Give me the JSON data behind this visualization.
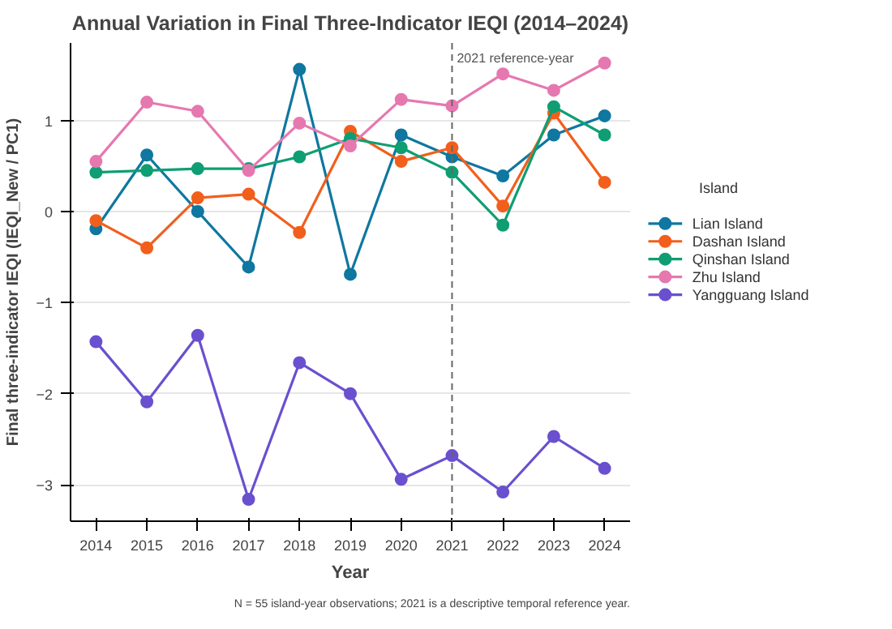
{
  "chart_data": {
    "type": "line",
    "title": "Annual Variation in Final Three-Indicator IEQI (2014–2024)",
    "xlabel": "Year",
    "ylabel": "Final three-indicator IEQI (IEQI_New / PC1)",
    "legend_title": "Island",
    "x": [
      2014,
      2015,
      2016,
      2017,
      2018,
      2019,
      2020,
      2021,
      2022,
      2023,
      2024
    ],
    "series": [
      {
        "name": "Lian Island",
        "color": "#0f77a0",
        "values": [
          -0.19,
          0.62,
          0.0,
          -0.61,
          1.56,
          -0.69,
          0.84,
          0.6,
          0.39,
          0.84,
          1.05
        ]
      },
      {
        "name": "Dashan Island",
        "color": "#f25f1c",
        "values": [
          -0.1,
          -0.4,
          0.15,
          0.19,
          -0.23,
          0.88,
          0.55,
          0.7,
          0.06,
          1.08,
          0.32
        ]
      },
      {
        "name": "Qinshan Island",
        "color": "#0f9e73",
        "values": [
          0.43,
          0.45,
          0.47,
          0.47,
          0.6,
          0.8,
          0.7,
          0.43,
          -0.15,
          1.15,
          0.84
        ]
      },
      {
        "name": "Zhu Island",
        "color": "#e678b0",
        "values": [
          0.55,
          1.2,
          1.1,
          0.45,
          0.97,
          0.72,
          1.23,
          1.16,
          1.51,
          1.33,
          1.63
        ]
      },
      {
        "name": "Yangguang Island",
        "color": "#6a50cf",
        "values": [
          -1.43,
          -2.09,
          -1.36,
          -3.16,
          -1.66,
          -2.0,
          -2.94,
          -2.68,
          -3.08,
          -2.47,
          -2.82
        ]
      }
    ],
    "xlim": [
      2013.5,
      2024.5
    ],
    "xticks": [
      2014,
      2015,
      2016,
      2017,
      2018,
      2019,
      2020,
      2021,
      2022,
      2023,
      2024
    ],
    "ylim": [
      -3.4,
      1.85
    ],
    "yticks": [
      -3,
      -2,
      -1,
      0,
      1
    ],
    "ref_lines": [
      {
        "axis": "x",
        "value": 2021,
        "label": "2021 reference-year",
        "color": "#666666",
        "line_style": "dashed"
      }
    ],
    "annotations": [
      "N = 55 island-year observations; 2021 is a descriptive temporal reference year."
    ],
    "grid": "y",
    "legend": "right",
    "marker": "circle",
    "line_style": "solid"
  }
}
